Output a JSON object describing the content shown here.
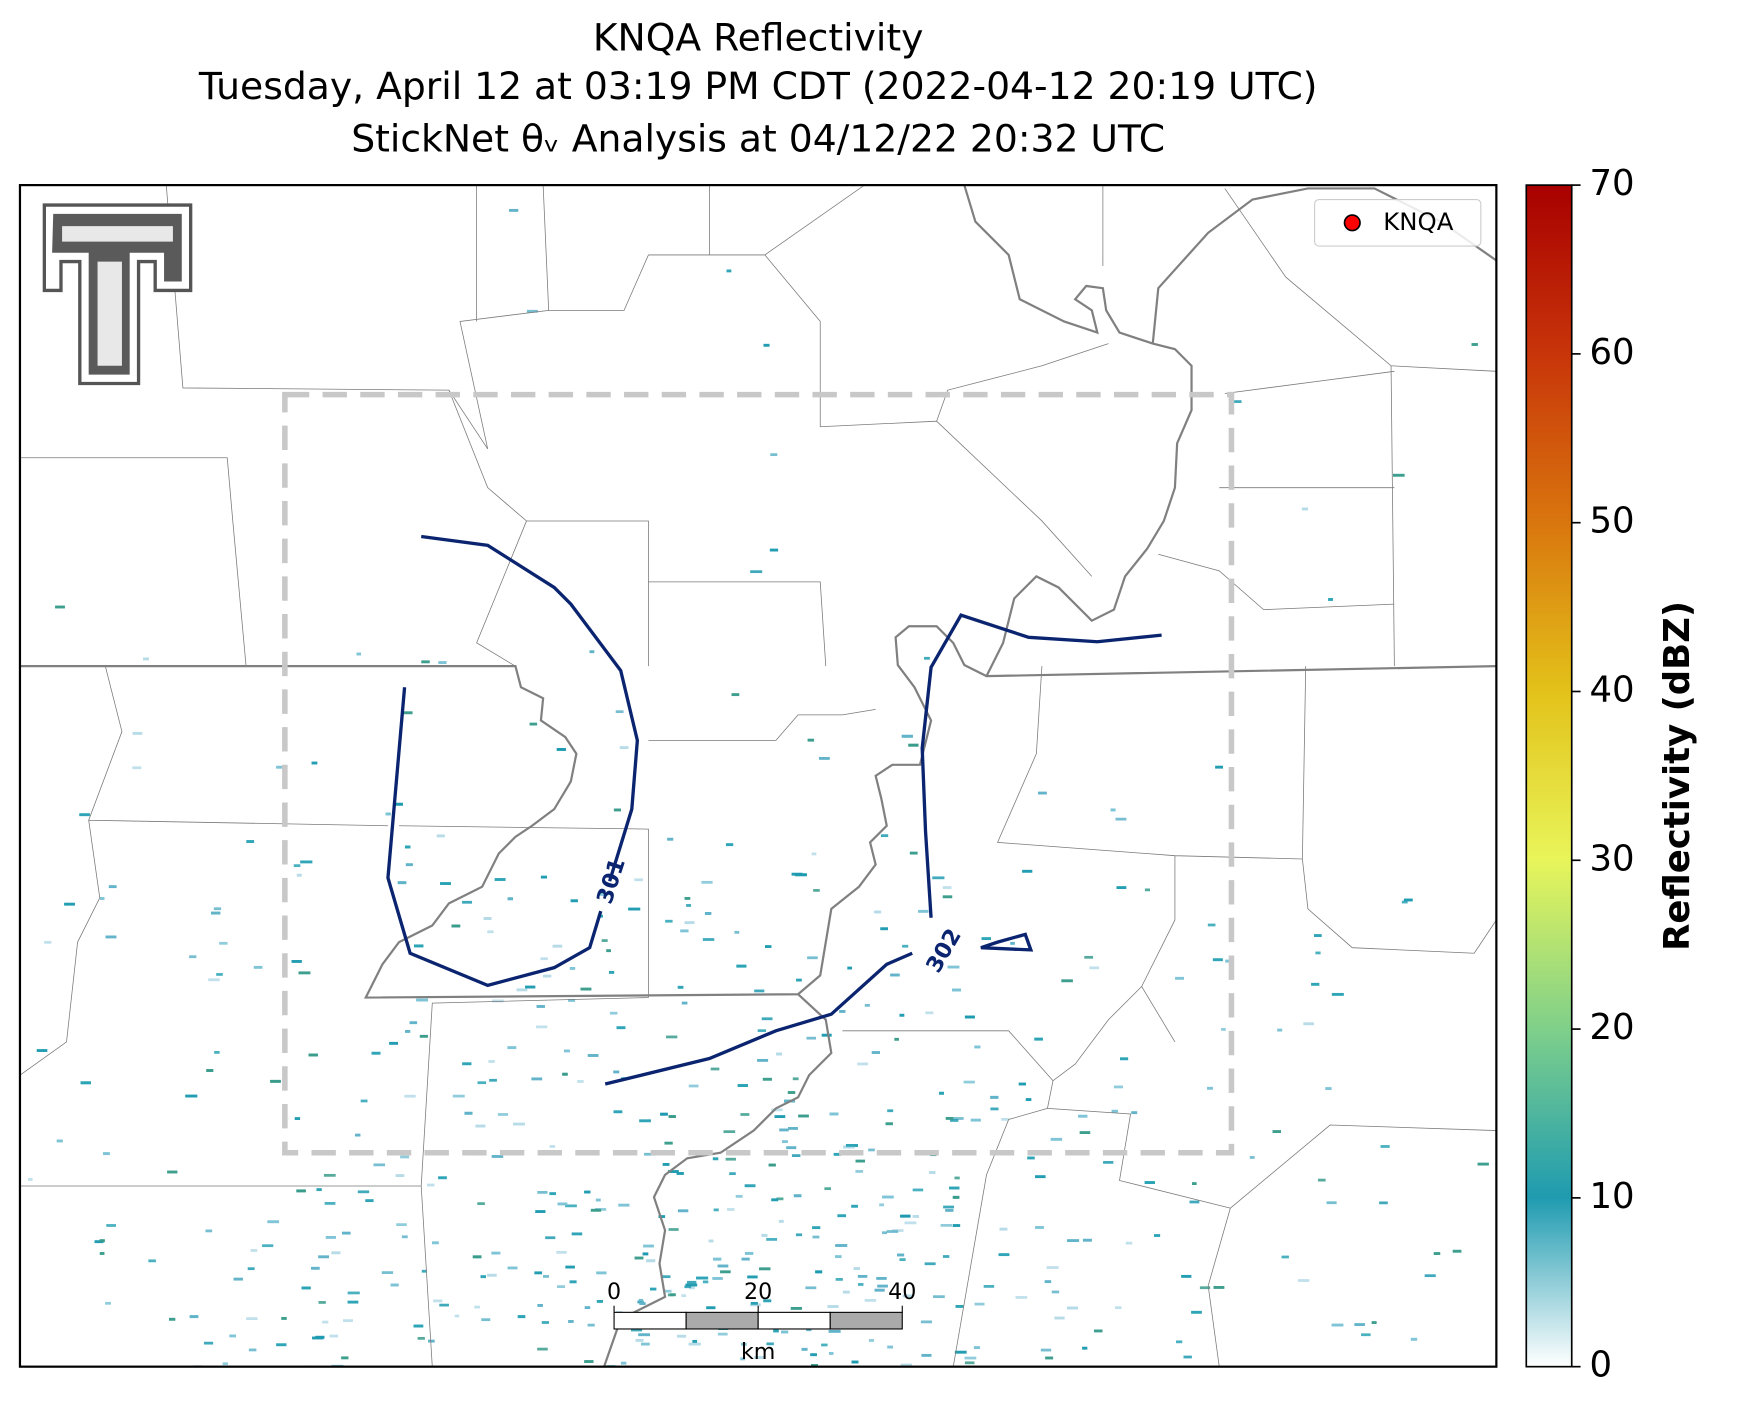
{
  "title": [
    "KNQA Reflectivity",
    "Tuesday, April 12 at 03:19 PM CDT (2022-04-12 20:19 UTC)",
    "StickNet θᵥ Analysis at 04/12/22 20:32 UTC"
  ],
  "legend": {
    "label": "KNQA",
    "color": "#ff0000"
  },
  "contours": [
    {
      "label": "301"
    },
    {
      "label": "302"
    }
  ],
  "colorbar": {
    "label": "Reflectivity (dBZ)",
    "lim": [
      0,
      70
    ],
    "ticks": [
      0,
      10,
      20,
      30,
      40,
      50,
      60,
      70
    ]
  },
  "scale_bar": {
    "ticks": [
      0,
      20,
      40
    ],
    "unit": "km"
  }
}
